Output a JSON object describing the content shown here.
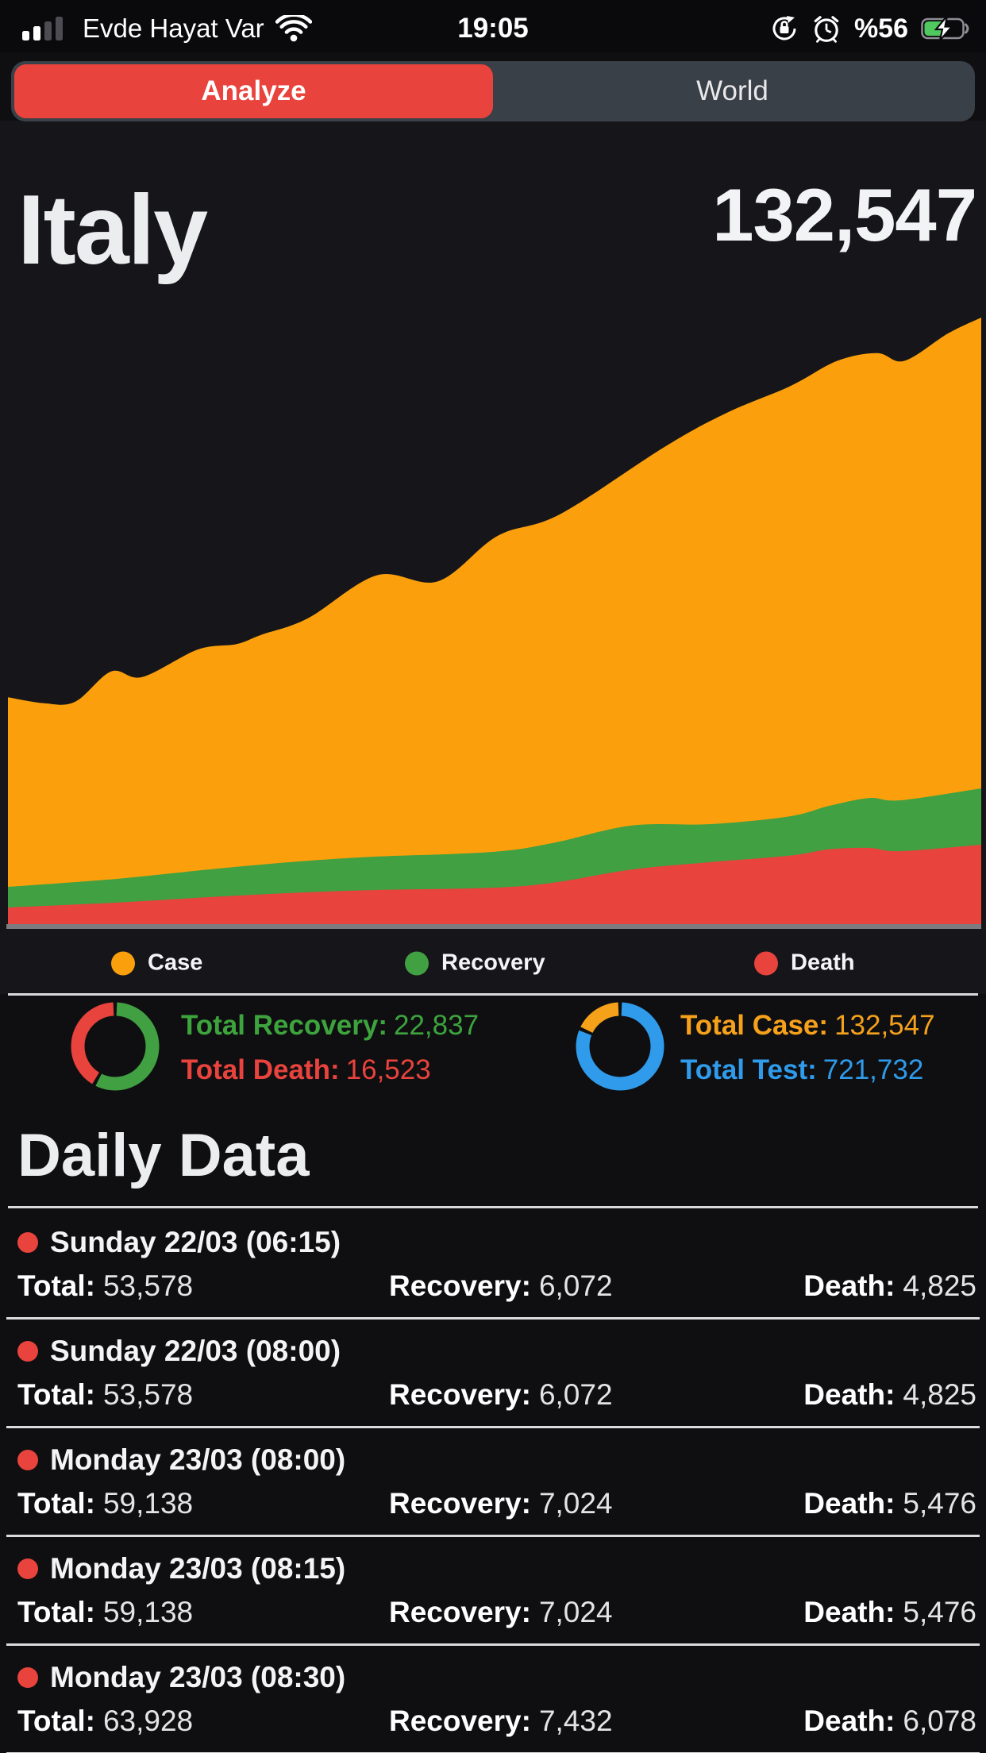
{
  "status_bar": {
    "carrier": "Evde Hayat Var",
    "time": "19:05",
    "battery": "%56",
    "battery_color": "#50C860",
    "icons": [
      "signal-strength",
      "wifi",
      "rotation-lock",
      "alarm",
      "battery-charging"
    ]
  },
  "tabs": {
    "analyze": "Analyze",
    "world": "World",
    "active": "Analyze",
    "active_color": "#E8433C"
  },
  "header": {
    "country": "Italy",
    "total_cases": "132,547"
  },
  "chart_data": {
    "type": "area",
    "stacked": true,
    "title": "",
    "xlabel": "",
    "ylabel": "",
    "x_axis_labels_visible": false,
    "y_axis_labels_visible": false,
    "grid": false,
    "ylim": [
      0,
      132547
    ],
    "note": "cumulative COVID-19 curves for Italy; x is normalized time (dates unlabeled in UI); band-top boundary values estimated from pixels",
    "series": [
      {
        "name": "Case",
        "color": "#FBA00C",
        "x_frac": [
          0,
          0.037,
          0.069,
          0.106,
          0.138,
          0.195,
          0.235,
          0.26,
          0.308,
          0.379,
          0.442,
          0.503,
          0.567,
          0.676,
          0.739,
          0.803,
          0.852,
          0.893,
          0.921,
          0.966,
          1
        ],
        "values": [
          49700,
          48400,
          48700,
          55300,
          54100,
          60100,
          61300,
          63300,
          66900,
          76300,
          75000,
          84900,
          89600,
          104500,
          111800,
          117500,
          123100,
          124800,
          123100,
          129100,
          132547
        ]
      },
      {
        "name": "Recovery",
        "color": "#41A041",
        "x_frac": [
          0,
          0.114,
          0.235,
          0.357,
          0.495,
          0.56,
          0.641,
          0.722,
          0.803,
          0.844,
          0.885,
          0.917,
          1
        ],
        "values": [
          8300,
          10100,
          12700,
          14700,
          15900,
          17900,
          21700,
          22000,
          23700,
          26000,
          27700,
          27200,
          29800
        ]
      },
      {
        "name": "Death",
        "color": "#E8433C",
        "x_frac": [
          0,
          0.114,
          0.235,
          0.357,
          0.495,
          0.56,
          0.641,
          0.722,
          0.803,
          0.844,
          0.885,
          0.917,
          1
        ],
        "values": [
          3800,
          4900,
          6400,
          7500,
          8100,
          9200,
          12100,
          13700,
          15100,
          16500,
          16800,
          16100,
          17500
        ]
      }
    ],
    "legend_position": "bottom"
  },
  "legend": [
    {
      "label": "Case",
      "color": "#FBA00C"
    },
    {
      "label": "Recovery",
      "color": "#41A041"
    },
    {
      "label": "Death",
      "color": "#E8433C"
    }
  ],
  "summary": {
    "total_recovery_label": "Total Recovery:",
    "total_recovery_value": "22,837",
    "total_death_label": "Total Death:",
    "total_death_value": "16,523",
    "total_case_label": "Total Case:",
    "total_case_value": "132,547",
    "total_test_label": "Total Test:",
    "total_test_value": "721,732",
    "recovery_donut_colors": [
      "#41A041",
      "#E8433C"
    ],
    "case_donut_colors": [
      "#2F9BEA",
      "#F6A11A"
    ]
  },
  "daily": {
    "title": "Daily Data",
    "total_label": "Total:",
    "recovery_label": "Recovery:",
    "death_label": "Death:",
    "rows": [
      {
        "date": "Sunday 22/03 (06:15)",
        "total": "53,578",
        "recovery": "6,072",
        "death": "4,825"
      },
      {
        "date": "Sunday 22/03 (08:00)",
        "total": "53,578",
        "recovery": "6,072",
        "death": "4,825"
      },
      {
        "date": "Monday 23/03 (08:00)",
        "total": "59,138",
        "recovery": "7,024",
        "death": "5,476"
      },
      {
        "date": "Monday 23/03 (08:15)",
        "total": "59,138",
        "recovery": "7,024",
        "death": "5,476"
      },
      {
        "date": "Monday 23/03 (08:30)",
        "total": "63,928",
        "recovery": "7,432",
        "death": "6,078"
      }
    ]
  },
  "colors": {
    "background": "#0F0F12",
    "chart_background": "#16161A",
    "divider": "#D9D9DB",
    "axis_line": "#7C7C80"
  }
}
